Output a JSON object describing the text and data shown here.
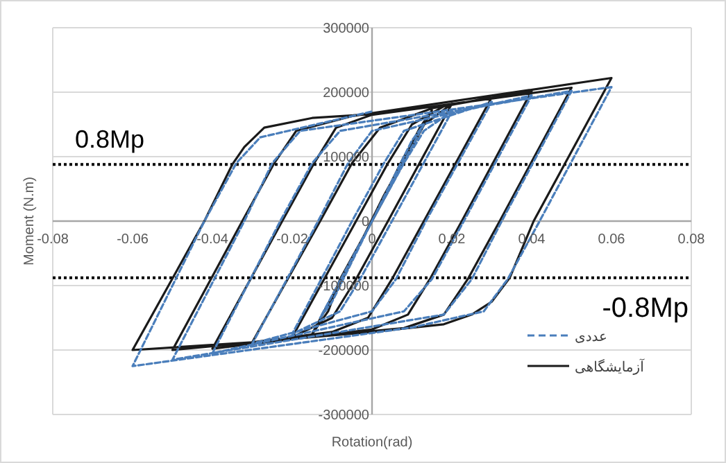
{
  "chart_data": {
    "type": "line",
    "xlabel": "Rotation(rad)",
    "ylabel": "Moment (N.m)",
    "xlim": [
      -0.08,
      0.08
    ],
    "xticks": [
      -0.08,
      -0.06,
      -0.04,
      -0.02,
      0,
      0.02,
      0.04,
      0.06,
      0.08
    ],
    "ylim": [
      -300000,
      300000
    ],
    "yticks": [
      -300000,
      -200000,
      -100000,
      0,
      100000,
      200000,
      300000
    ],
    "grid": "y",
    "legend": "bottom right",
    "marker": "none",
    "ref_lines": [
      {
        "axis": "y",
        "value": 88000,
        "label": "0.8Mp",
        "color": "#000000",
        "line_style": "dotted"
      },
      {
        "axis": "y",
        "value": -88000,
        "label": "-0.8Mp",
        "color": "#000000",
        "line_style": "dotted"
      }
    ],
    "series": [
      {
        "name": "عددی",
        "color": "#4a7ebb",
        "line_style": "dashed",
        "x": [
          0,
          0.01,
          0.013,
          0.0,
          -0.01,
          -0.013,
          0.0,
          0.008,
          0.013,
          0.02,
          0.005,
          -0.003,
          -0.008,
          -0.02,
          -0.005,
          0.003,
          0.008,
          0.03,
          0.0135,
          0.006,
          0.0,
          -0.03,
          -0.0135,
          -0.006,
          0.0,
          0.04,
          0.023,
          0.015,
          0.008,
          -0.04,
          -0.023,
          -0.015,
          -0.008,
          0.05,
          0.0325,
          0.025,
          0.018,
          -0.05,
          -0.032,
          -0.025,
          -0.018,
          0.06,
          0.042,
          0.034,
          0.028,
          0.01,
          -0.06,
          -0.042,
          -0.034,
          -0.028,
          0
        ],
        "values": [
          0,
          125000,
          150000,
          0,
          -125000,
          -150000,
          0,
          90000,
          140000,
          170000,
          0,
          -90000,
          -140000,
          -175000,
          0,
          90000,
          140000,
          185000,
          0,
          -90000,
          -140000,
          -190000,
          0,
          90000,
          140000,
          195000,
          0,
          -90000,
          -140000,
          -205000,
          0,
          90000,
          140000,
          202000,
          0,
          -90000,
          -145000,
          -215000,
          0,
          90000,
          140000,
          208000,
          0,
          -90000,
          -140000,
          -165000,
          -225000,
          0,
          90000,
          130000,
          170000
        ]
      },
      {
        "name": "آزمایشگاهی",
        "color": "#1a1a1a",
        "line_style": "solid",
        "x": [
          0,
          0.008,
          0.012,
          0.003,
          -0.009,
          -0.012,
          0.0,
          0.012,
          0.015,
          0.0,
          -0.008,
          -0.011,
          -0.015,
          0.0,
          0.008,
          0.012,
          0.02,
          0.004,
          -0.004,
          -0.01,
          -0.02,
          -0.004,
          0.004,
          0.01,
          0.018,
          0.03,
          0.013,
          0.005,
          -0.001,
          -0.01,
          -0.03,
          -0.013,
          -0.005,
          0.002,
          0.015,
          0.04,
          0.0225,
          0.0145,
          0.009,
          0,
          -0.04,
          -0.0225,
          -0.0145,
          -0.009,
          0,
          0.05,
          0.032,
          0.024,
          0.018,
          0.008,
          -0.05,
          -0.0325,
          -0.0245,
          -0.019,
          -0.005,
          0.06,
          0.0405,
          0.0345,
          0.03,
          0.025,
          0.018,
          0,
          -0.03,
          -0.06,
          -0.042,
          -0.035,
          -0.032,
          -0.027,
          -0.015,
          0
        ],
        "values": [
          0,
          100000,
          140000,
          40000,
          -110000,
          -140000,
          0,
          145000,
          172000,
          0,
          -90000,
          -140000,
          -175000,
          0,
          95000,
          145000,
          182000,
          0,
          -90000,
          -150000,
          -180000,
          0,
          90000,
          150000,
          178000,
          192000,
          0,
          -90000,
          -150000,
          -172000,
          -188000,
          0,
          90000,
          145000,
          175000,
          202000,
          0,
          -90000,
          -145000,
          -168000,
          -198000,
          0,
          90000,
          145000,
          165000,
          207000,
          0,
          -90000,
          -145000,
          -166000,
          -200000,
          0,
          90000,
          140000,
          163000,
          222000,
          0,
          -88000,
          -125000,
          -145000,
          -160000,
          -172000,
          -188000,
          -200000,
          0,
          88000,
          115000,
          145000,
          160000,
          166000
        ]
      }
    ]
  }
}
